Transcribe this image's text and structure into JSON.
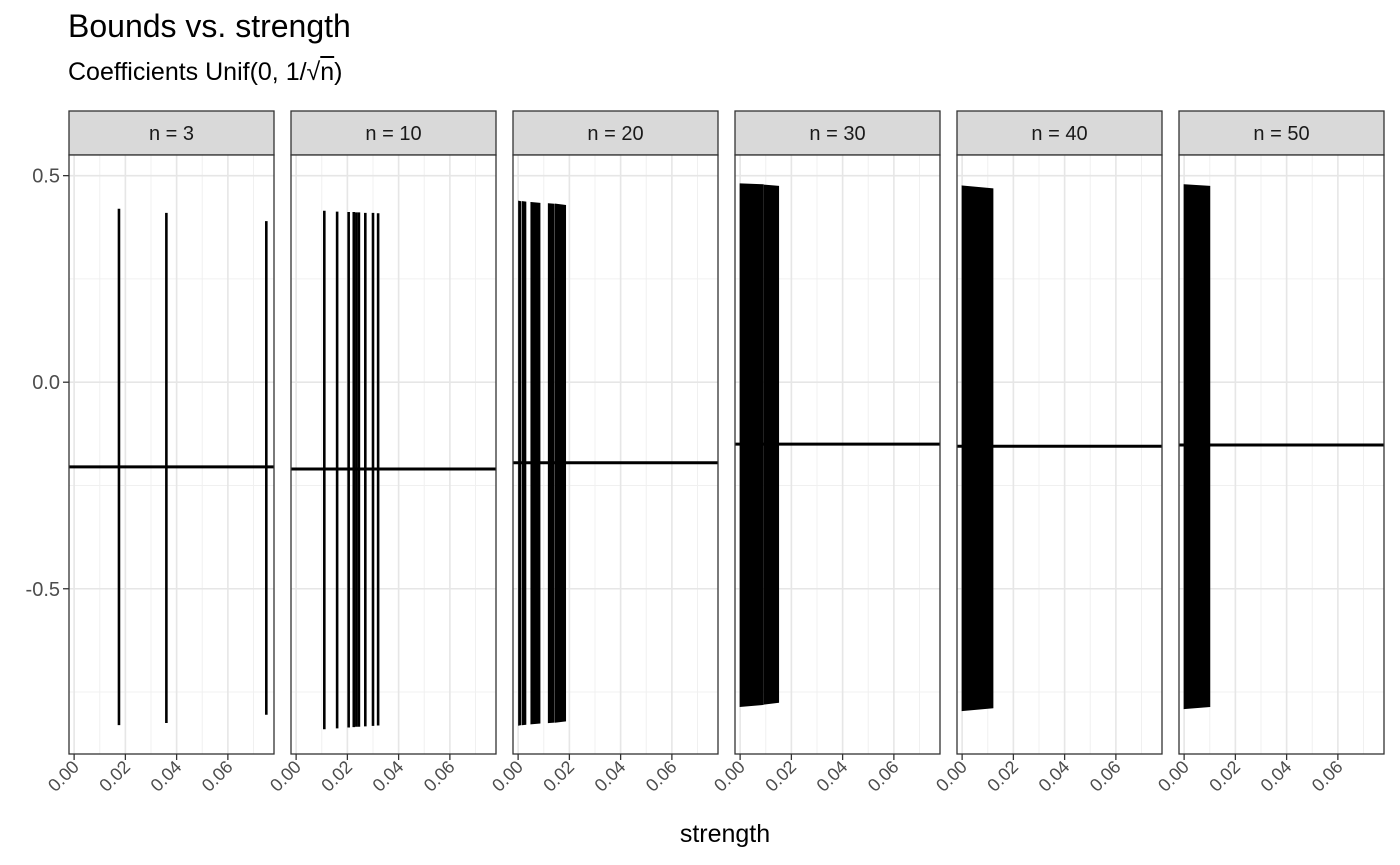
{
  "chart_data": {
    "type": "faceted-errorbar",
    "title": "Bounds vs. strength",
    "subtitle": "Coefficients Unif(0, 1/√n)",
    "subtitle_prefix": "Coefficients Unif(0, 1/√",
    "subtitle_radicand": "n",
    "subtitle_suffix": ")",
    "xlabel": "strength",
    "ylabel": "",
    "xlim": [
      -0.002,
      0.078
    ],
    "ylim": [
      -0.9,
      0.55
    ],
    "x_ticks": [
      0.0,
      0.02,
      0.04,
      0.06
    ],
    "x_tick_labels": [
      "0.00",
      "0.02",
      "0.04",
      "0.06"
    ],
    "y_ticks": [
      0.5,
      0.0,
      -0.5
    ],
    "y_tick_labels": [
      "0.5",
      "0.0",
      "-0.5"
    ],
    "grid": true,
    "facets": [
      {
        "label": "n = 3",
        "hline": -0.205,
        "intervals": [
          {
            "x": 0.0175,
            "lower": -0.83,
            "upper": 0.42
          },
          {
            "x": 0.036,
            "lower": -0.825,
            "upper": 0.41
          },
          {
            "x": 0.075,
            "lower": -0.805,
            "upper": 0.39
          }
        ]
      },
      {
        "label": "n = 10",
        "hline": -0.21,
        "intervals": [
          {
            "x": 0.011,
            "lower": -0.84,
            "upper": 0.415
          },
          {
            "x": 0.016,
            "lower": -0.838,
            "upper": 0.413
          },
          {
            "x": 0.0205,
            "lower": -0.836,
            "upper": 0.412
          },
          {
            "x": 0.0225,
            "lower": -0.835,
            "upper": 0.412
          },
          {
            "x": 0.0235,
            "lower": -0.834,
            "upper": 0.411
          },
          {
            "x": 0.0245,
            "lower": -0.834,
            "upper": 0.411
          },
          {
            "x": 0.027,
            "lower": -0.833,
            "upper": 0.41
          },
          {
            "x": 0.03,
            "lower": -0.832,
            "upper": 0.41
          },
          {
            "x": 0.032,
            "lower": -0.831,
            "upper": 0.409
          }
        ]
      },
      {
        "label": "n = 20",
        "hline": -0.195,
        "bands": [
          {
            "x0": 0.0002,
            "x1": 0.001,
            "lower0": -0.83,
            "lower1": -0.829,
            "upper0": 0.438,
            "upper1": 0.437
          },
          {
            "x0": 0.0016,
            "x1": 0.003,
            "lower0": -0.829,
            "lower1": -0.828,
            "upper0": 0.437,
            "upper1": 0.436
          },
          {
            "x0": 0.005,
            "x1": 0.0085,
            "lower0": -0.827,
            "lower1": -0.825,
            "upper0": 0.435,
            "upper1": 0.433
          },
          {
            "x0": 0.0118,
            "x1": 0.014,
            "lower0": -0.824,
            "lower1": -0.823,
            "upper0": 0.432,
            "upper1": 0.431
          },
          {
            "x0": 0.0145,
            "x1": 0.0185,
            "lower0": -0.823,
            "lower1": -0.82,
            "upper0": 0.431,
            "upper1": 0.428
          }
        ]
      },
      {
        "label": "n = 30",
        "hline": -0.15,
        "bands": [
          {
            "x0": 0.0,
            "x1": 0.009,
            "lower0": -0.785,
            "lower1": -0.78,
            "upper0": 0.48,
            "upper1": 0.478
          },
          {
            "x0": 0.0094,
            "x1": 0.015,
            "lower0": -0.779,
            "lower1": -0.775,
            "upper0": 0.477,
            "upper1": 0.474
          }
        ]
      },
      {
        "label": "n = 40",
        "hline": -0.155,
        "bands": [
          {
            "x0": 0.0,
            "x1": 0.012,
            "lower0": -0.795,
            "lower1": -0.788,
            "upper0": 0.475,
            "upper1": 0.468
          }
        ]
      },
      {
        "label": "n = 50",
        "hline": -0.152,
        "bands": [
          {
            "x0": 0.0,
            "x1": 0.01,
            "lower0": -0.79,
            "lower1": -0.785,
            "upper0": 0.478,
            "upper1": 0.474
          }
        ]
      }
    ]
  }
}
